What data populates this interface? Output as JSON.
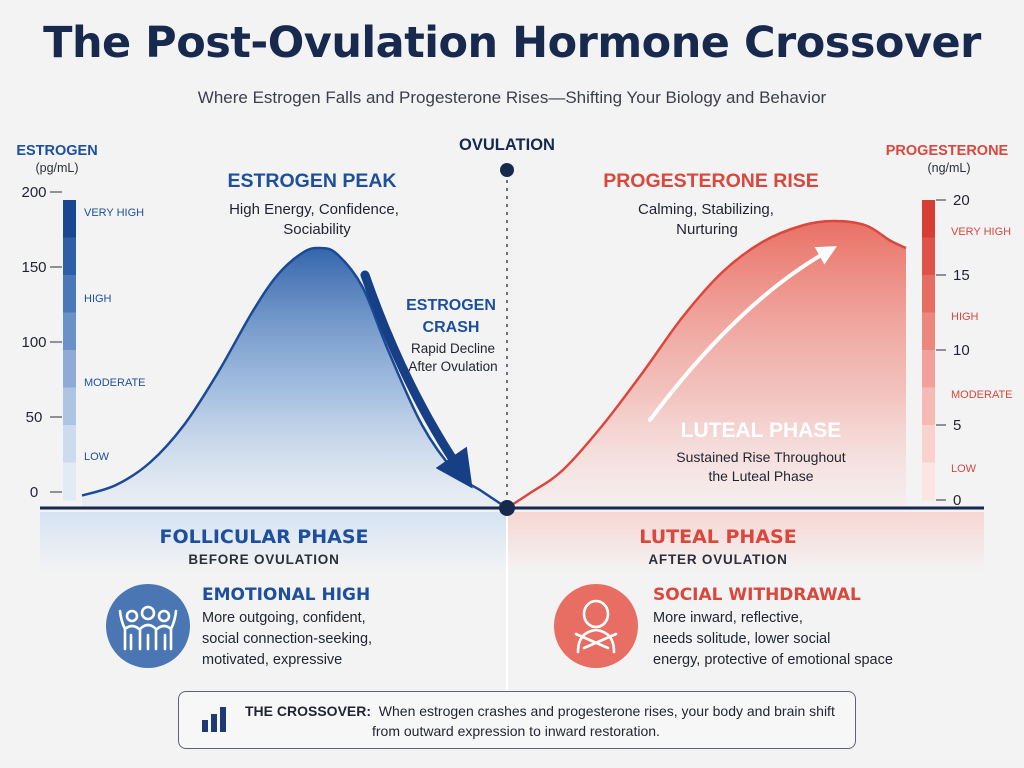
{
  "header": {
    "title": "The Post-Ovulation Hormone Crossover",
    "subtitle": "Where Estrogen Falls and Progesterone Rises—Shifting Your Biology and Behavior"
  },
  "colors": {
    "estrogen": "#1d4f9c",
    "progesterone": "#e0564b",
    "navy": "#17294d"
  },
  "chart_data": {
    "type": "area",
    "title": "The Post-Ovulation Hormone Crossover",
    "marker_label": "OVULATION",
    "left_axis": {
      "label": "ESTROGEN",
      "unit": "(pg/mL)",
      "ticks": [
        "0",
        "50",
        "100",
        "150",
        "200"
      ],
      "tick_values": [
        0,
        50,
        100,
        150,
        200
      ],
      "ylim": [
        0,
        200
      ],
      "bands": [
        "VERY HIGH",
        "HIGH",
        "MODERATE",
        "LOW"
      ]
    },
    "right_axis": {
      "label": "PROGESTERONE",
      "unit": "(ng/mL)",
      "ticks": [
        "0",
        "5",
        "10",
        "15",
        "20"
      ],
      "tick_values": [
        0,
        5,
        10,
        15,
        20
      ],
      "ylim": [
        0,
        20
      ],
      "bands": [
        "VERY HIGH",
        "HIGH",
        "MODERATE",
        "LOW"
      ]
    },
    "series": [
      {
        "name": "Estrogen",
        "axis": "left",
        "x": [
          0,
          0.08,
          0.16,
          0.24,
          0.32,
          0.4,
          0.46,
          0.52,
          0.56,
          0.6,
          0.66,
          0.72,
          0.8,
          0.88,
          0.94,
          1.0
        ],
        "values": [
          3,
          10,
          25,
          50,
          85,
          125,
          150,
          165,
          168,
          164,
          142,
          100,
          50,
          18,
          6,
          0
        ]
      },
      {
        "name": "Progesterone",
        "axis": "right",
        "x": [
          0,
          0.06,
          0.14,
          0.24,
          0.34,
          0.44,
          0.54,
          0.64,
          0.74,
          0.82,
          0.9,
          0.96,
          1.0
        ],
        "values": [
          0,
          0.5,
          2,
          5,
          8.5,
          12.2,
          15.2,
          17.2,
          18.3,
          18.6,
          18.3,
          17.3,
          16.8
        ]
      }
    ],
    "annotations": {
      "estrogen_peak": {
        "title": "ESTROGEN PEAK",
        "text": [
          "High Energy, Confidence,",
          "Sociability"
        ]
      },
      "estrogen_crash": {
        "title": [
          "ESTROGEN",
          "CRASH"
        ],
        "text": [
          "Rapid Decline",
          "After Ovulation"
        ]
      },
      "progesterone_rise": {
        "title": "PROGESTERONE RISE",
        "text": [
          "Calming, Stabilizing,",
          "Nurturing"
        ]
      },
      "luteal": {
        "title": "LUTEAL PHASE",
        "text": [
          "Sustained Rise Throughout",
          "the Luteal Phase"
        ]
      }
    }
  },
  "phases": {
    "follicular": {
      "label": "FOLLICULAR PHASE",
      "sub": "BEFORE OVULATION"
    },
    "luteal": {
      "label": "LUTEAL PHASE",
      "sub": "AFTER OVULATION"
    }
  },
  "behavior": {
    "left": {
      "icon": "group-people-icon",
      "title": "EMOTIONAL HIGH",
      "lines": [
        "More outgoing, confident,",
        "social connection-seeking,",
        "motivated, expressive"
      ]
    },
    "right": {
      "icon": "self-hug-person-icon",
      "title": "SOCIAL WITHDRAWAL",
      "lines": [
        "More inward, reflective,",
        "needs solitude, lower social",
        "energy, protective of emotional space"
      ]
    }
  },
  "crossover": {
    "icon": "bar-chart-icon",
    "label": "THE CROSSOVER:",
    "text_line1": "When estrogen crashes and progesterone rises, your body and brain shift",
    "text_line2": "from outward expression to inward restoration."
  }
}
